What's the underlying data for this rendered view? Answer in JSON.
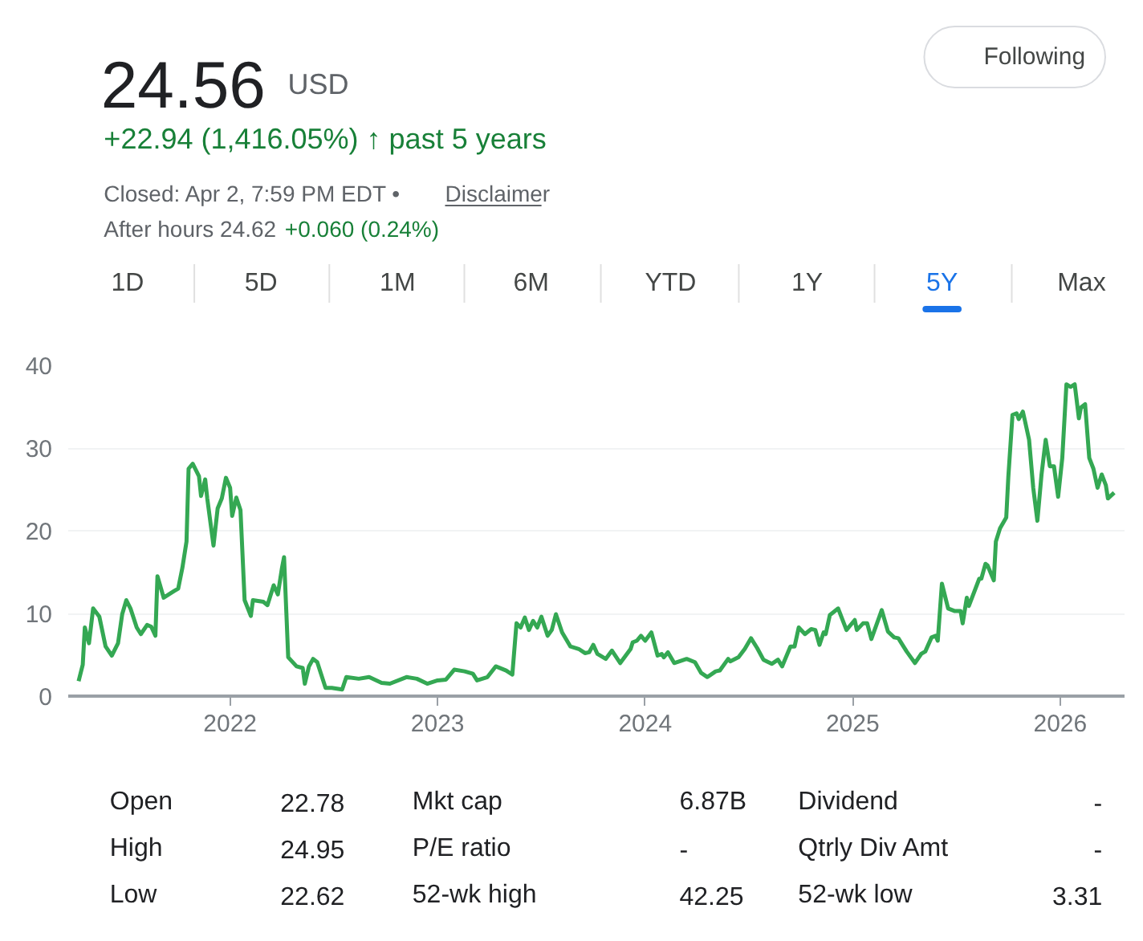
{
  "chart_data": {
    "type": "line",
    "title": "24.56",
    "subtitle": "+22.94 (1,416.05%) ↑ past 5 years",
    "annotations": [
      "USD",
      "Closed: Apr 2, 7:59 PM EDT •",
      "Disclaimer",
      "After hours 24.62",
      "+0.060 (0.24%)",
      "Following",
      "1D",
      "5D",
      "1M",
      "6M",
      "YTD",
      "1Y",
      "5Y",
      "Max",
      "Open",
      "22.78",
      "Mkt cap",
      "6.87B",
      "Dividend",
      "-",
      "High",
      "24.95",
      "P/E ratio",
      "-",
      "Qtrly Div Amt",
      "-",
      "Low",
      "22.62",
      "52-wk high",
      "42.25",
      "52-wk low",
      "3.31"
    ],
    "x": [
      2021.27,
      2021.29,
      2021.3,
      2021.32,
      2021.34,
      2021.37,
      2021.4,
      2021.43,
      2021.46,
      2021.48,
      2021.5,
      2021.52,
      2021.55,
      2021.57,
      2021.6,
      2021.62,
      2021.64,
      2021.65,
      2021.68,
      2021.73,
      2021.75,
      2021.77,
      2021.79,
      2021.8,
      2021.82,
      2021.85,
      2021.86,
      2021.88,
      2021.89,
      2021.92,
      2021.94,
      2021.96,
      2021.98,
      2022.0,
      2022.01,
      2022.03,
      2022.05,
      2022.07,
      2022.1,
      2022.11,
      2022.16,
      2022.18,
      2022.21,
      2022.23,
      2022.25,
      2022.26,
      2022.28,
      2022.32,
      2022.35,
      2022.36,
      2022.38,
      2022.4,
      2022.42,
      2022.46,
      2022.49,
      2022.54,
      2022.56,
      2022.62,
      2022.67,
      2022.73,
      2022.77,
      2022.85,
      2022.9,
      2022.95,
      2023.0,
      2023.04,
      2023.08,
      2023.13,
      2023.17,
      2023.19,
      2023.24,
      2023.28,
      2023.33,
      2023.36,
      2023.38,
      2023.4,
      2023.42,
      2023.44,
      2023.46,
      2023.48,
      2023.5,
      2023.53,
      2023.55,
      2023.57,
      2023.6,
      2023.64,
      2023.68,
      2023.71,
      2023.73,
      2023.75,
      2023.77,
      2023.81,
      2023.84,
      2023.88,
      2023.93,
      2023.94,
      2023.96,
      2023.98,
      2024.0,
      2024.03,
      2024.06,
      2024.08,
      2024.09,
      2024.11,
      2024.14,
      2024.2,
      2024.24,
      2024.27,
      2024.3,
      2024.34,
      2024.36,
      2024.4,
      2024.41,
      2024.45,
      2024.48,
      2024.51,
      2024.54,
      2024.57,
      2024.61,
      2024.64,
      2024.66,
      2024.7,
      2024.72,
      2024.74,
      2024.77,
      2024.8,
      2024.82,
      2024.84,
      2024.86,
      2024.87,
      2024.89,
      2024.93,
      2024.97,
      2025.01,
      2025.02,
      2025.05,
      2025.07,
      2025.09,
      2025.14,
      2025.17,
      2025.2,
      2025.22,
      2025.26,
      2025.28,
      2025.3,
      2025.33,
      2025.35,
      2025.38,
      2025.4,
      2025.41,
      2025.43,
      2025.46,
      2025.49,
      2025.52,
      2025.53,
      2025.55,
      2025.56,
      2025.61,
      2025.62,
      2025.64,
      2025.65,
      2025.68,
      2025.69,
      2025.71,
      2025.74,
      2025.75,
      2025.77,
      2025.79,
      2025.8,
      2025.82,
      2025.83,
      2025.85,
      2025.87,
      2025.89,
      2025.91,
      2025.93,
      2025.95,
      2025.97,
      2025.99,
      2026.01,
      2026.03,
      2026.05,
      2026.07,
      2026.09,
      2026.1,
      2026.12,
      2026.14,
      2026.16,
      2026.18,
      2026.2,
      2026.22,
      2026.23,
      2026.26
    ],
    "series": [
      {
        "color": "#34a853",
        "values": [
          1.8,
          3.8,
          8.3,
          6.4,
          10.6,
          9.6,
          6.0,
          4.9,
          6.4,
          9.9,
          11.6,
          10.6,
          8.3,
          7.5,
          8.6,
          8.4,
          7.3,
          14.5,
          11.9,
          12.7,
          13.0,
          15.5,
          18.7,
          27.5,
          28.1,
          26.6,
          24.2,
          26.2,
          23.9,
          18.2,
          22.7,
          23.9,
          26.4,
          25.2,
          21.8,
          24.0,
          22.5,
          11.6,
          9.7,
          11.6,
          11.4,
          11.0,
          13.4,
          12.3,
          15.5,
          16.8,
          4.7,
          3.6,
          3.4,
          1.5,
          3.6,
          4.5,
          4.1,
          1.0,
          1.0,
          0.8,
          2.3,
          2.1,
          2.3,
          1.6,
          1.5,
          2.3,
          2.1,
          1.5,
          1.9,
          2.0,
          3.2,
          3.0,
          2.7,
          1.9,
          2.3,
          3.6,
          3.1,
          2.6,
          8.8,
          8.3,
          9.5,
          8.0,
          9.1,
          8.3,
          9.6,
          7.3,
          8.0,
          9.9,
          7.7,
          6.0,
          5.7,
          5.2,
          5.3,
          6.2,
          5.1,
          4.5,
          5.5,
          4.0,
          5.7,
          6.5,
          6.7,
          7.3,
          6.7,
          7.7,
          4.9,
          5.1,
          4.7,
          5.3,
          4.0,
          4.5,
          4.1,
          2.8,
          2.3,
          3.0,
          3.1,
          4.5,
          4.2,
          4.7,
          5.7,
          7.0,
          5.8,
          4.4,
          3.9,
          4.4,
          3.6,
          6.0,
          6.0,
          8.3,
          7.5,
          8.1,
          8.0,
          6.2,
          7.7,
          7.5,
          9.8,
          10.6,
          8.0,
          9.2,
          8.0,
          8.8,
          8.8,
          6.9,
          10.4,
          7.8,
          7.1,
          7.0,
          5.4,
          4.7,
          4.0,
          5.1,
          5.4,
          7.1,
          7.3,
          6.7,
          13.6,
          10.6,
          10.3,
          10.3,
          8.8,
          11.9,
          10.9,
          14.2,
          14.2,
          16.0,
          15.8,
          14.0,
          18.7,
          20.3,
          21.6,
          26.5,
          34.0,
          34.2,
          33.5,
          34.4,
          33.3,
          31.0,
          25.2,
          21.2,
          26.8,
          31.0,
          27.8,
          27.8,
          24.1,
          28.8,
          37.7,
          37.4,
          37.7,
          33.6,
          34.9,
          35.3,
          28.8,
          27.5,
          25.2,
          26.8,
          25.5,
          23.9,
          24.6
        ]
      }
    ],
    "xlim": [
      2021.22,
      2026.31
    ],
    "ylim": [
      0,
      40
    ],
    "xticks": [
      2022,
      2023,
      2024,
      2025,
      2026
    ],
    "yticks": [
      0,
      10,
      20,
      30,
      40
    ],
    "grid": "y"
  }
}
